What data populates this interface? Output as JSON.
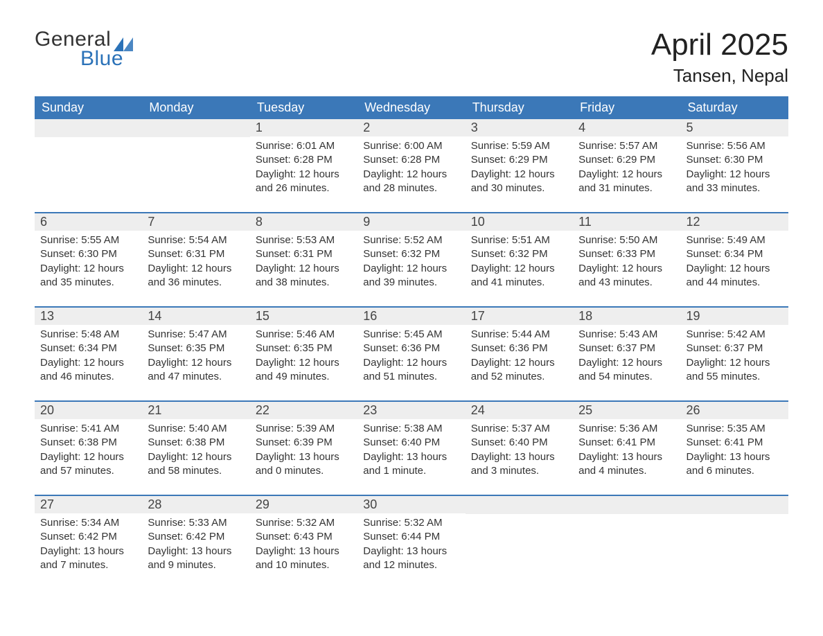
{
  "logo": {
    "word1": "General",
    "word2": "Blue",
    "triangle_color": "#2b72b8"
  },
  "title": "April 2025",
  "subtitle": "Tansen, Nepal",
  "colors": {
    "header_bg": "#3b78b8",
    "header_text": "#ffffff",
    "daynum_bg": "#eeeeee",
    "week_border": "#3b78b8",
    "body_text": "#333333",
    "background": "#ffffff"
  },
  "fontsizes": {
    "title": 44,
    "subtitle": 26,
    "header": 18,
    "daynum": 18,
    "body": 15
  },
  "day_headers": [
    "Sunday",
    "Monday",
    "Tuesday",
    "Wednesday",
    "Thursday",
    "Friday",
    "Saturday"
  ],
  "weeks": [
    [
      {
        "day": null
      },
      {
        "day": null
      },
      {
        "day": 1,
        "sunrise": "6:01 AM",
        "sunset": "6:28 PM",
        "daylight": "12 hours and 26 minutes."
      },
      {
        "day": 2,
        "sunrise": "6:00 AM",
        "sunset": "6:28 PM",
        "daylight": "12 hours and 28 minutes."
      },
      {
        "day": 3,
        "sunrise": "5:59 AM",
        "sunset": "6:29 PM",
        "daylight": "12 hours and 30 minutes."
      },
      {
        "day": 4,
        "sunrise": "5:57 AM",
        "sunset": "6:29 PM",
        "daylight": "12 hours and 31 minutes."
      },
      {
        "day": 5,
        "sunrise": "5:56 AM",
        "sunset": "6:30 PM",
        "daylight": "12 hours and 33 minutes."
      }
    ],
    [
      {
        "day": 6,
        "sunrise": "5:55 AM",
        "sunset": "6:30 PM",
        "daylight": "12 hours and 35 minutes."
      },
      {
        "day": 7,
        "sunrise": "5:54 AM",
        "sunset": "6:31 PM",
        "daylight": "12 hours and 36 minutes."
      },
      {
        "day": 8,
        "sunrise": "5:53 AM",
        "sunset": "6:31 PM",
        "daylight": "12 hours and 38 minutes."
      },
      {
        "day": 9,
        "sunrise": "5:52 AM",
        "sunset": "6:32 PM",
        "daylight": "12 hours and 39 minutes."
      },
      {
        "day": 10,
        "sunrise": "5:51 AM",
        "sunset": "6:32 PM",
        "daylight": "12 hours and 41 minutes."
      },
      {
        "day": 11,
        "sunrise": "5:50 AM",
        "sunset": "6:33 PM",
        "daylight": "12 hours and 43 minutes."
      },
      {
        "day": 12,
        "sunrise": "5:49 AM",
        "sunset": "6:34 PM",
        "daylight": "12 hours and 44 minutes."
      }
    ],
    [
      {
        "day": 13,
        "sunrise": "5:48 AM",
        "sunset": "6:34 PM",
        "daylight": "12 hours and 46 minutes."
      },
      {
        "day": 14,
        "sunrise": "5:47 AM",
        "sunset": "6:35 PM",
        "daylight": "12 hours and 47 minutes."
      },
      {
        "day": 15,
        "sunrise": "5:46 AM",
        "sunset": "6:35 PM",
        "daylight": "12 hours and 49 minutes."
      },
      {
        "day": 16,
        "sunrise": "5:45 AM",
        "sunset": "6:36 PM",
        "daylight": "12 hours and 51 minutes."
      },
      {
        "day": 17,
        "sunrise": "5:44 AM",
        "sunset": "6:36 PM",
        "daylight": "12 hours and 52 minutes."
      },
      {
        "day": 18,
        "sunrise": "5:43 AM",
        "sunset": "6:37 PM",
        "daylight": "12 hours and 54 minutes."
      },
      {
        "day": 19,
        "sunrise": "5:42 AM",
        "sunset": "6:37 PM",
        "daylight": "12 hours and 55 minutes."
      }
    ],
    [
      {
        "day": 20,
        "sunrise": "5:41 AM",
        "sunset": "6:38 PM",
        "daylight": "12 hours and 57 minutes."
      },
      {
        "day": 21,
        "sunrise": "5:40 AM",
        "sunset": "6:38 PM",
        "daylight": "12 hours and 58 minutes."
      },
      {
        "day": 22,
        "sunrise": "5:39 AM",
        "sunset": "6:39 PM",
        "daylight": "13 hours and 0 minutes."
      },
      {
        "day": 23,
        "sunrise": "5:38 AM",
        "sunset": "6:40 PM",
        "daylight": "13 hours and 1 minute."
      },
      {
        "day": 24,
        "sunrise": "5:37 AM",
        "sunset": "6:40 PM",
        "daylight": "13 hours and 3 minutes."
      },
      {
        "day": 25,
        "sunrise": "5:36 AM",
        "sunset": "6:41 PM",
        "daylight": "13 hours and 4 minutes."
      },
      {
        "day": 26,
        "sunrise": "5:35 AM",
        "sunset": "6:41 PM",
        "daylight": "13 hours and 6 minutes."
      }
    ],
    [
      {
        "day": 27,
        "sunrise": "5:34 AM",
        "sunset": "6:42 PM",
        "daylight": "13 hours and 7 minutes."
      },
      {
        "day": 28,
        "sunrise": "5:33 AM",
        "sunset": "6:42 PM",
        "daylight": "13 hours and 9 minutes."
      },
      {
        "day": 29,
        "sunrise": "5:32 AM",
        "sunset": "6:43 PM",
        "daylight": "13 hours and 10 minutes."
      },
      {
        "day": 30,
        "sunrise": "5:32 AM",
        "sunset": "6:44 PM",
        "daylight": "13 hours and 12 minutes."
      },
      {
        "day": null
      },
      {
        "day": null
      },
      {
        "day": null
      }
    ]
  ],
  "labels": {
    "sunrise": "Sunrise: ",
    "sunset": "Sunset: ",
    "daylight": "Daylight: "
  }
}
